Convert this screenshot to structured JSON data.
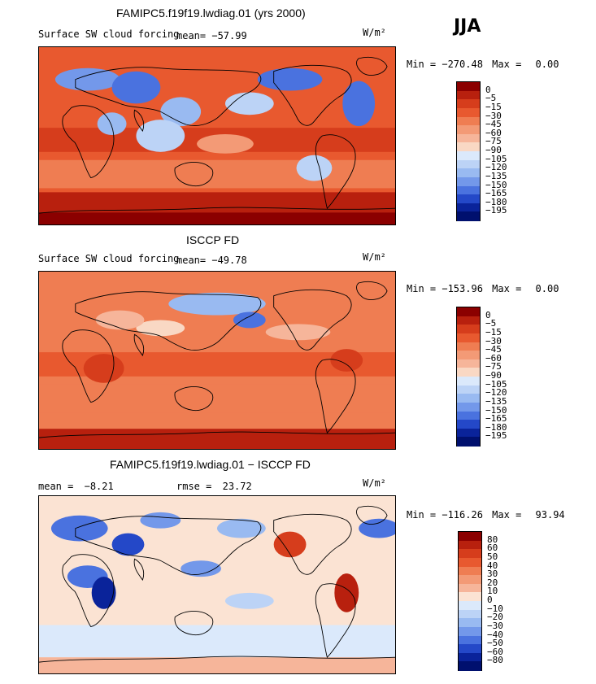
{
  "header": {
    "season": "JJA"
  },
  "panels": [
    {
      "title": "FAMIPC5.f19f19.lwdiag.01 (yrs 2000)",
      "variable": "Surface SW cloud forcing",
      "mean_label": "mean=",
      "mean_value": "−57.99",
      "units": "W/m²",
      "min_label": "Min =",
      "min_value": "−270.48",
      "max_label": "Max =",
      "max_value": "0.00",
      "levels": [
        "0",
        "−5",
        "−15",
        "−30",
        "−45",
        "−60",
        "−75",
        "−90",
        "−105",
        "−120",
        "−135",
        "−150",
        "−165",
        "−180",
        "−195"
      ],
      "colors": [
        "#8b0000",
        "#b8200e",
        "#d63d1c",
        "#e8592f",
        "#ef7d52",
        "#f39a76",
        "#f6b59a",
        "#f9d8c4",
        "#dbe9fb",
        "#bcd3f6",
        "#99baf1",
        "#7398ea",
        "#4a72df",
        "#2448c8",
        "#0a239a",
        "#00106e"
      ]
    },
    {
      "title": "ISCCP FD",
      "variable": "Surface SW cloud forcing",
      "mean_label": "mean=",
      "mean_value": "−49.78",
      "units": "W/m²",
      "min_label": "Min =",
      "min_value": "−153.96",
      "max_label": "Max =",
      "max_value": "0.00",
      "levels": [
        "0",
        "−5",
        "−15",
        "−30",
        "−45",
        "−60",
        "−75",
        "−90",
        "−105",
        "−120",
        "−135",
        "−150",
        "−165",
        "−180",
        "−195"
      ],
      "colors": [
        "#8b0000",
        "#b8200e",
        "#d63d1c",
        "#e8592f",
        "#ef7d52",
        "#f39a76",
        "#f6b59a",
        "#f9d8c4",
        "#dbe9fb",
        "#bcd3f6",
        "#99baf1",
        "#7398ea",
        "#4a72df",
        "#2448c8",
        "#0a239a",
        "#00106e"
      ]
    },
    {
      "title": "FAMIPC5.f19f19.lwdiag.01 − ISCCP FD",
      "mean_label": "mean =",
      "mean_value": "−8.21",
      "rmse_label": "rmse =",
      "rmse_value": "23.72",
      "units": "W/m²",
      "min_label": "Min =",
      "min_value": "−116.26",
      "max_label": "Max =",
      "max_value": "93.94",
      "levels": [
        "80",
        "60",
        "50",
        "40",
        "30",
        "20",
        "10",
        "0",
        "−10",
        "−20",
        "−30",
        "−40",
        "−50",
        "−60",
        "−80"
      ],
      "colors": [
        "#8b0000",
        "#b8200e",
        "#d63d1c",
        "#e8592f",
        "#ef7d52",
        "#f39a76",
        "#f6b59a",
        "#fbe3d3",
        "#dbe9fb",
        "#bcd3f6",
        "#99baf1",
        "#7398ea",
        "#4a72df",
        "#2448c8",
        "#0a239a",
        "#00106e"
      ]
    }
  ]
}
